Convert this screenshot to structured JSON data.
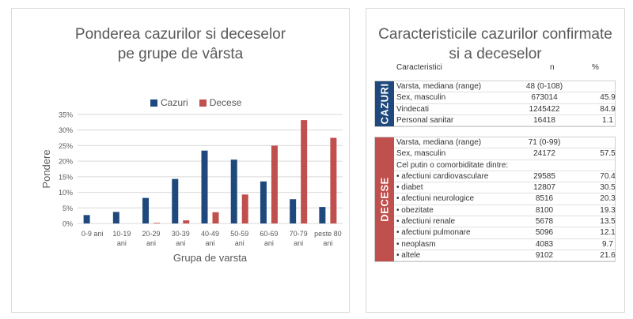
{
  "chart_data": {
    "type": "bar",
    "title": "Ponderea cazurilor si deceselor pe grupe de vârsta",
    "title_lines": [
      "Ponderea cazurilor si deceselor",
      "pe grupe de vârsta"
    ],
    "xlabel": "Grupa de varsta",
    "ylabel": "Pondere",
    "categories": [
      [
        "0-9 ani"
      ],
      [
        "10-19",
        "ani"
      ],
      [
        "20-29",
        "ani"
      ],
      [
        "30-39",
        "ani"
      ],
      [
        "40-49",
        "ani"
      ],
      [
        "50-59",
        "ani"
      ],
      [
        "60-69",
        "ani"
      ],
      [
        "70-79",
        "ani"
      ],
      [
        "peste 80",
        "ani"
      ]
    ],
    "series": [
      {
        "name": "Cazuri",
        "color": "#1f497d",
        "values": [
          2.7,
          3.7,
          8.2,
          14.3,
          23.4,
          20.5,
          13.5,
          7.8,
          5.3
        ]
      },
      {
        "name": "Decese",
        "color": "#c0504d",
        "values": [
          0.0,
          0.0,
          0.2,
          1.0,
          3.6,
          9.3,
          25.0,
          33.2,
          27.5
        ]
      }
    ],
    "ylim": [
      0,
      35
    ],
    "yticks": [
      "0%",
      "5%",
      "10%",
      "15%",
      "20%",
      "25%",
      "30%",
      "35%"
    ],
    "grid": true,
    "legend": "top-center"
  },
  "table": {
    "title_lines": [
      "Caracteristicile cazurilor confirmate",
      "si a deceselor"
    ],
    "headers": {
      "label": "Caracteristici",
      "n": "n",
      "pct": "%"
    },
    "cazuri": {
      "label": "CAZURI",
      "color": "#1f497d",
      "rows": [
        {
          "label": "Varsta, mediana (range)",
          "n": "48 (0-108)",
          "pct": ""
        },
        {
          "label": "Sex, masculin",
          "n": "673014",
          "pct": "45.9"
        },
        {
          "label": "Vindecati",
          "n": "1245422",
          "pct": "84.9"
        },
        {
          "label": "Personal sanitar",
          "n": "16418",
          "pct": "1.1"
        }
      ]
    },
    "decese": {
      "label": "DECESE",
      "color": "#c0504d",
      "rows": [
        {
          "label": "Varsta, mediana (range)",
          "n": "71 (0-99)",
          "pct": ""
        },
        {
          "label": "Sex, masculin",
          "n": "24172",
          "pct": "57.5"
        },
        {
          "label": "Cel putin o comorbiditate dintre:",
          "n": "",
          "pct": ""
        },
        {
          "label": "• afectiuni cardiovasculare",
          "n": "29585",
          "pct": "70.4"
        },
        {
          "label": "• diabet",
          "n": "12807",
          "pct": "30.5"
        },
        {
          "label": "• afectiuni neurologice",
          "n": "8516",
          "pct": "20.3"
        },
        {
          "label": "• obezitate",
          "n": "8100",
          "pct": "19.3"
        },
        {
          "label": "• afectiuni renale",
          "n": "5678",
          "pct": "13.5"
        },
        {
          "label": "• afectiuni pulmonare",
          "n": "5096",
          "pct": "12.1"
        },
        {
          "label": "• neoplasm",
          "n": "4083",
          "pct": "9.7"
        },
        {
          "label": "• altele",
          "n": "9102",
          "pct": "21.6"
        }
      ]
    }
  }
}
